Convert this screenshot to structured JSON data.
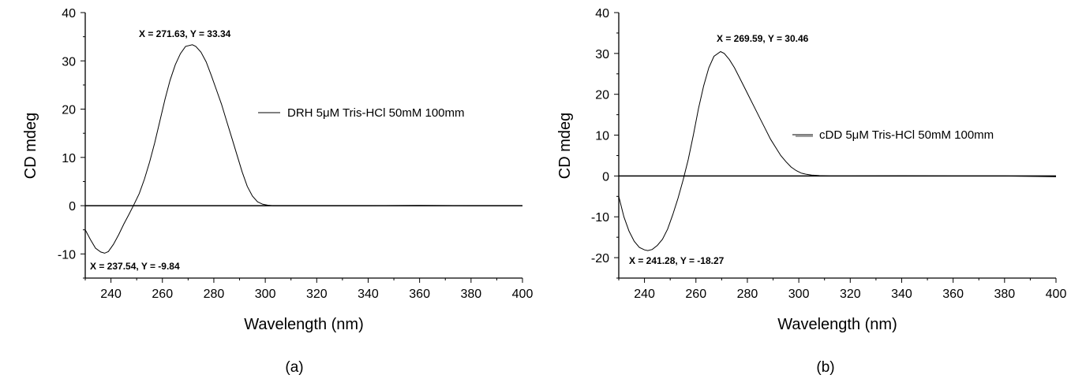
{
  "chart_data": [
    {
      "panel_label": "(a)",
      "type": "line",
      "xlabel": "Wavelength (nm)",
      "ylabel": "CD mdeg",
      "xlim": [
        230,
        400
      ],
      "ylim": [
        -15,
        40
      ],
      "xticks": [
        240,
        260,
        280,
        300,
        320,
        340,
        360,
        380,
        400
      ],
      "yticks": [
        -10,
        0,
        10,
        20,
        30,
        40
      ],
      "grid": false,
      "legend_position": "right",
      "series": [
        {
          "name": "DRH 5μM Tris-HCl 50mM 100mm",
          "x": [
            230,
            232,
            234,
            236,
            237.54,
            239,
            241,
            243,
            245,
            247,
            249,
            251,
            253,
            255,
            257,
            259,
            261,
            263,
            265,
            267,
            269,
            271.63,
            273,
            275,
            277,
            279,
            281,
            283,
            285,
            287,
            289,
            291,
            293,
            295,
            297,
            299,
            301,
            303,
            310,
            320,
            340,
            360,
            380,
            400
          ],
          "y": [
            -5,
            -7,
            -8.8,
            -9.6,
            -9.84,
            -9.5,
            -8,
            -6,
            -3.8,
            -1.8,
            0.3,
            2.5,
            5.5,
            9,
            13,
            17.5,
            22,
            26,
            29.2,
            31.5,
            33,
            33.34,
            33,
            31.8,
            29.8,
            27,
            24,
            21,
            17.5,
            14,
            10.5,
            7,
            4,
            2,
            0.8,
            0.3,
            0.1,
            0,
            0,
            0,
            0,
            0.05,
            0,
            0
          ]
        }
      ],
      "annotations": [
        "X = 271.63, Y = 33.34",
        "X = 237.54, Y = -9.84"
      ]
    },
    {
      "panel_label": "(b)",
      "type": "line",
      "xlabel": "Wavelength (nm)",
      "ylabel": "CD mdeg",
      "xlim": [
        230,
        400
      ],
      "ylim": [
        -25,
        40
      ],
      "xticks": [
        240,
        260,
        280,
        300,
        320,
        340,
        360,
        380,
        400
      ],
      "yticks": [
        -20,
        -10,
        0,
        10,
        20,
        30,
        40
      ],
      "grid": false,
      "legend_position": "right",
      "series": [
        {
          "name": "cDD 5μM Tris-HCl 50mM 100mm",
          "x": [
            230,
            232,
            234,
            236,
            238,
            240,
            241.28,
            243,
            245,
            247,
            249,
            251,
            253,
            255,
            257,
            259,
            261,
            263,
            265,
            267,
            269.59,
            271,
            273,
            275,
            277,
            279,
            281,
            283,
            285,
            287,
            289,
            291,
            293,
            295,
            297,
            299,
            301,
            303,
            305,
            308,
            312,
            320,
            340,
            360,
            380,
            400
          ],
          "y": [
            -5,
            -10,
            -13.5,
            -16,
            -17.5,
            -18.1,
            -18.27,
            -18,
            -17,
            -15.5,
            -13,
            -9.5,
            -5.5,
            -1,
            4,
            10,
            16.5,
            22,
            26.5,
            29.3,
            30.46,
            30,
            28.5,
            26.5,
            24,
            21.5,
            19,
            16.5,
            14,
            11.5,
            9,
            7,
            5,
            3.5,
            2.2,
            1.3,
            0.7,
            0.4,
            0.2,
            0.1,
            0,
            0,
            0.05,
            0,
            0,
            -0.2
          ]
        }
      ],
      "annotations": [
        "X = 269.59, Y = 30.46",
        "X = 241.28, Y = -18.27"
      ]
    }
  ]
}
